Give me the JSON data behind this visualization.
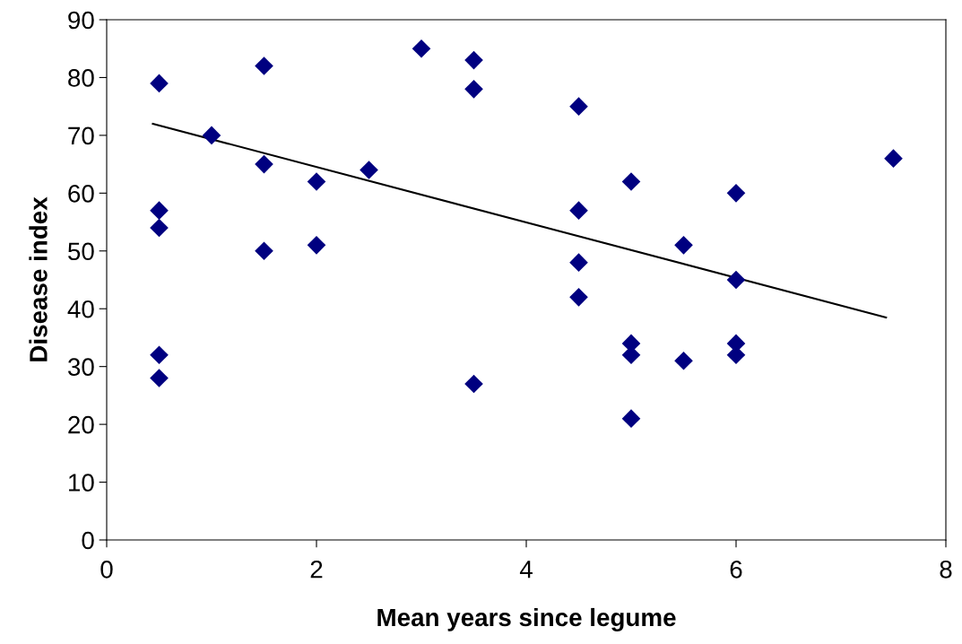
{
  "chart_data": {
    "type": "scatter",
    "xlabel": "Mean years since legume",
    "ylabel": "Disease index",
    "xlim": [
      0,
      8
    ],
    "xticks": [
      0,
      2,
      4,
      6,
      8
    ],
    "ylim": [
      0,
      90
    ],
    "yticks": [
      0,
      10,
      20,
      30,
      40,
      50,
      60,
      70,
      80,
      90
    ],
    "grid": false,
    "marker": "diamond",
    "series": [
      {
        "color": "#000080",
        "x": [
          0.5,
          0.5,
          0.5,
          0.5,
          0.5,
          1,
          1.5,
          1.5,
          1.5,
          2,
          2,
          2.5,
          3,
          3.5,
          3.5,
          3.5,
          4.5,
          4.5,
          4.5,
          4.5,
          5,
          5,
          5,
          5,
          5.5,
          5.5,
          6,
          6,
          6,
          6,
          7.5
        ],
        "values": [
          79,
          57,
          54,
          32,
          28,
          70,
          82,
          65,
          50,
          62,
          51,
          64,
          85,
          83,
          78,
          27,
          75,
          57,
          48,
          42,
          62,
          34,
          32,
          21,
          51,
          31,
          60,
          45,
          34,
          32,
          66
        ]
      },
      {
        "type": "line",
        "color": "#000000",
        "marker": "none",
        "line_style": "solid",
        "x": [
          0.44,
          7.43
        ],
        "values": [
          72,
          38.5
        ]
      }
    ]
  }
}
